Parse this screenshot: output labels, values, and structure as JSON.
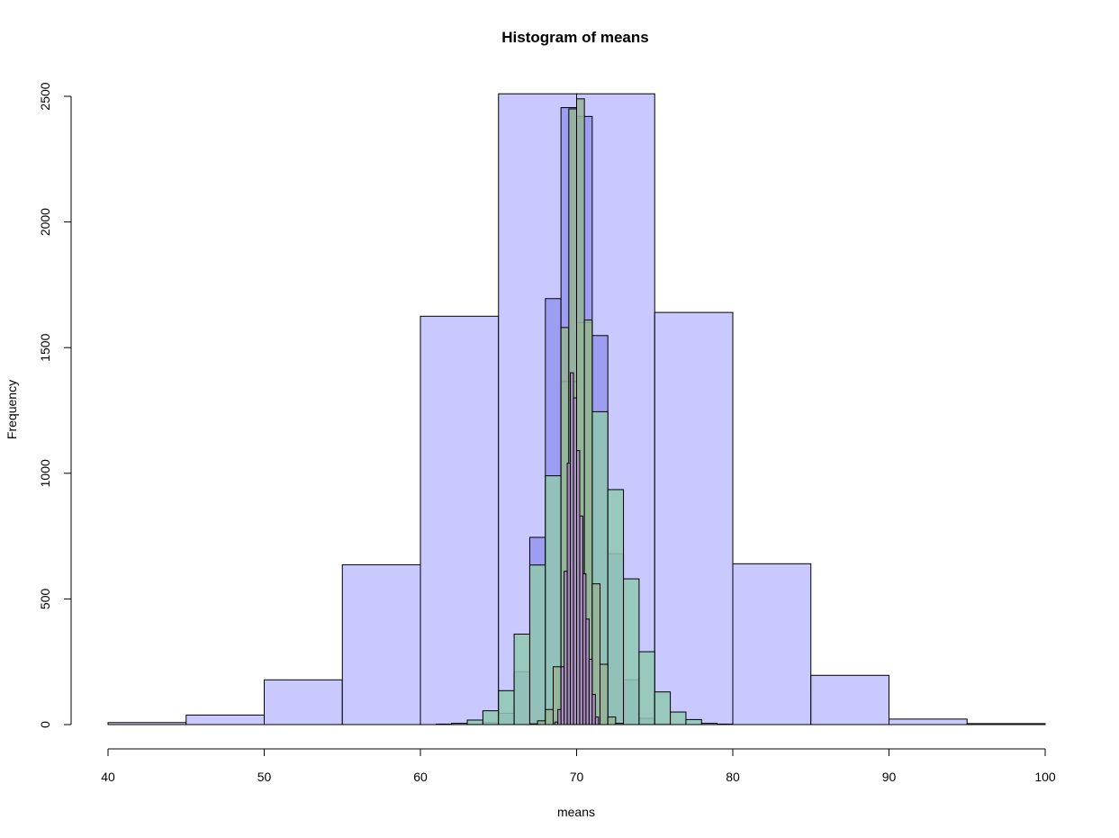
{
  "chart_data": {
    "type": "bar",
    "title": "Histogram of means",
    "xlabel": "means",
    "ylabel": "Frequency",
    "xlim": [
      40,
      100
    ],
    "ylim": [
      0,
      2500
    ],
    "x_ticks": [
      "40",
      "50",
      "60",
      "70",
      "80",
      "90",
      "100"
    ],
    "y_ticks": [
      "0",
      "500",
      "1000",
      "1500",
      "2000",
      "2500"
    ],
    "grid": false,
    "legend": "none",
    "series": [
      {
        "color": "#c0c0ff",
        "bins": [
          {
            "x0": 40,
            "x1": 45,
            "count": 8
          },
          {
            "x0": 45,
            "x1": 50,
            "count": 38
          },
          {
            "x0": 50,
            "x1": 55,
            "count": 178
          },
          {
            "x0": 55,
            "x1": 60,
            "count": 636
          },
          {
            "x0": 60,
            "x1": 65,
            "count": 1625
          },
          {
            "x0": 65,
            "x1": 70,
            "count": 2510
          },
          {
            "x0": 70,
            "x1": 75,
            "count": 2510
          },
          {
            "x0": 75,
            "x1": 80,
            "count": 1640
          },
          {
            "x0": 80,
            "x1": 85,
            "count": 640
          },
          {
            "x0": 85,
            "x1": 90,
            "count": 196
          },
          {
            "x0": 90,
            "x1": 95,
            "count": 22
          },
          {
            "x0": 95,
            "x1": 100,
            "count": 4
          }
        ]
      },
      {
        "color": "#9595f0",
        "bins": [
          {
            "x0": 63,
            "x1": 64,
            "count": 2
          },
          {
            "x0": 64,
            "x1": 65,
            "count": 8
          },
          {
            "x0": 65,
            "x1": 66,
            "count": 45
          },
          {
            "x0": 66,
            "x1": 67,
            "count": 210
          },
          {
            "x0": 67,
            "x1": 68,
            "count": 745
          },
          {
            "x0": 68,
            "x1": 69,
            "count": 1695
          },
          {
            "x0": 69,
            "x1": 70,
            "count": 2455
          },
          {
            "x0": 70,
            "x1": 71,
            "count": 2420
          },
          {
            "x0": 71,
            "x1": 72,
            "count": 1548
          },
          {
            "x0": 72,
            "x1": 73,
            "count": 680
          },
          {
            "x0": 73,
            "x1": 74,
            "count": 178
          },
          {
            "x0": 74,
            "x1": 75,
            "count": 25
          },
          {
            "x0": 75,
            "x1": 76,
            "count": 3
          }
        ]
      },
      {
        "color": "#90c8b0",
        "bins": [
          {
            "x0": 61,
            "x1": 62,
            "count": 2
          },
          {
            "x0": 62,
            "x1": 63,
            "count": 5
          },
          {
            "x0": 63,
            "x1": 64,
            "count": 18
          },
          {
            "x0": 64,
            "x1": 65,
            "count": 55
          },
          {
            "x0": 65,
            "x1": 66,
            "count": 135
          },
          {
            "x0": 66,
            "x1": 67,
            "count": 360
          },
          {
            "x0": 67,
            "x1": 68,
            "count": 635
          },
          {
            "x0": 68,
            "x1": 69,
            "count": 990
          },
          {
            "x0": 69,
            "x1": 70,
            "count": 1365
          },
          {
            "x0": 70,
            "x1": 71,
            "count": 1600
          },
          {
            "x0": 71,
            "x1": 72,
            "count": 1245
          },
          {
            "x0": 72,
            "x1": 73,
            "count": 935
          },
          {
            "x0": 73,
            "x1": 74,
            "count": 580
          },
          {
            "x0": 74,
            "x1": 75,
            "count": 290
          },
          {
            "x0": 75,
            "x1": 76,
            "count": 130
          },
          {
            "x0": 76,
            "x1": 77,
            "count": 50
          },
          {
            "x0": 77,
            "x1": 78,
            "count": 20
          },
          {
            "x0": 78,
            "x1": 79,
            "count": 5
          },
          {
            "x0": 79,
            "x1": 80,
            "count": 2
          }
        ]
      },
      {
        "color": "#96b496",
        "bins": [
          {
            "x0": 67,
            "x1": 67.5,
            "count": 3
          },
          {
            "x0": 67.5,
            "x1": 68,
            "count": 15
          },
          {
            "x0": 68,
            "x1": 68.5,
            "count": 60
          },
          {
            "x0": 68.5,
            "x1": 69,
            "count": 230
          },
          {
            "x0": 69,
            "x1": 69.5,
            "count": 1580
          },
          {
            "x0": 69.5,
            "x1": 70,
            "count": 2450
          },
          {
            "x0": 70,
            "x1": 70.5,
            "count": 2490
          },
          {
            "x0": 70.5,
            "x1": 71,
            "count": 1610
          },
          {
            "x0": 71,
            "x1": 71.5,
            "count": 560
          },
          {
            "x0": 71.5,
            "x1": 72,
            "count": 240
          },
          {
            "x0": 72,
            "x1": 72.5,
            "count": 30
          },
          {
            "x0": 72.5,
            "x1": 73,
            "count": 5
          }
        ]
      },
      {
        "color": "#b08cc8",
        "bins": [
          {
            "x0": 68.6,
            "x1": 68.8,
            "count": 10
          },
          {
            "x0": 68.8,
            "x1": 69.0,
            "count": 60
          },
          {
            "x0": 69.0,
            "x1": 69.2,
            "count": 230
          },
          {
            "x0": 69.2,
            "x1": 69.4,
            "count": 610
          },
          {
            "x0": 69.4,
            "x1": 69.6,
            "count": 1040
          },
          {
            "x0": 69.6,
            "x1": 69.8,
            "count": 1400
          },
          {
            "x0": 69.8,
            "x1": 70.0,
            "count": 1300
          },
          {
            "x0": 70.0,
            "x1": 70.2,
            "count": 1090
          },
          {
            "x0": 70.2,
            "x1": 70.4,
            "count": 830
          },
          {
            "x0": 70.4,
            "x1": 70.6,
            "count": 600
          },
          {
            "x0": 70.6,
            "x1": 70.8,
            "count": 420
          },
          {
            "x0": 70.8,
            "x1": 71.0,
            "count": 260
          },
          {
            "x0": 71.0,
            "x1": 71.2,
            "count": 120
          },
          {
            "x0": 71.2,
            "x1": 71.4,
            "count": 30
          }
        ]
      }
    ]
  }
}
